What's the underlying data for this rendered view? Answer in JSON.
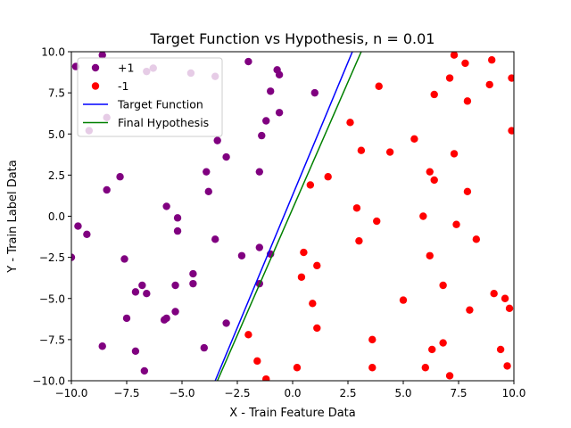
{
  "chart_data": {
    "type": "scatter",
    "title": "Target Function vs Hypothesis, n = 0.01",
    "xlabel": "X - Train Feature Data",
    "ylabel": "Y - Train Label Data",
    "xlim": [
      -10,
      10
    ],
    "ylim": [
      -10,
      10
    ],
    "xticks": [
      -10,
      -7.5,
      -5,
      -2.5,
      0,
      2.5,
      5,
      7.5,
      10
    ],
    "xtick_labels": [
      "−10.0",
      "−7.5",
      "−5.0",
      "−2.5",
      "0.0",
      "2.5",
      "5.0",
      "7.5",
      "10.0"
    ],
    "yticks": [
      -10,
      -7.5,
      -5,
      -2.5,
      0,
      2.5,
      5,
      7.5,
      10
    ],
    "ytick_labels": [
      "−10.0",
      "−7.5",
      "−5.0",
      "−2.5",
      "0.0",
      "2.5",
      "5.0",
      "7.5",
      "10.0"
    ],
    "grid": false,
    "legend_position": "upper-left",
    "series": [
      {
        "name": "+1",
        "kind": "scatter",
        "color": "#800080",
        "points": [
          [
            -9.8,
            9.1
          ],
          [
            -8.6,
            9.8
          ],
          [
            -6.3,
            9.0
          ],
          [
            -6.6,
            8.8
          ],
          [
            -4.6,
            8.7
          ],
          [
            -3.5,
            8.5
          ],
          [
            -9.2,
            5.2
          ],
          [
            -8.4,
            6.0
          ],
          [
            -2.0,
            9.4
          ],
          [
            -0.7,
            8.9
          ],
          [
            -0.6,
            8.6
          ],
          [
            -1.0,
            7.6
          ],
          [
            1.0,
            7.5
          ],
          [
            -0.6,
            6.3
          ],
          [
            -1.2,
            5.8
          ],
          [
            -1.4,
            4.9
          ],
          [
            -3.4,
            4.6
          ],
          [
            -3.0,
            3.6
          ],
          [
            -3.9,
            2.7
          ],
          [
            -1.5,
            2.7
          ],
          [
            -7.8,
            2.4
          ],
          [
            -8.4,
            1.6
          ],
          [
            -3.8,
            1.5
          ],
          [
            -5.7,
            0.6
          ],
          [
            -5.2,
            -0.1
          ],
          [
            -9.7,
            -0.6
          ],
          [
            -9.3,
            -1.1
          ],
          [
            -5.2,
            -0.9
          ],
          [
            -3.5,
            -1.4
          ],
          [
            -1.5,
            -1.9
          ],
          [
            -10.0,
            -2.5
          ],
          [
            -7.6,
            -2.6
          ],
          [
            -2.3,
            -2.4
          ],
          [
            -1.0,
            -2.3
          ],
          [
            -4.5,
            -3.5
          ],
          [
            -4.5,
            -4.1
          ],
          [
            -1.5,
            -4.1
          ],
          [
            -6.8,
            -4.2
          ],
          [
            -5.3,
            -4.2
          ],
          [
            -7.1,
            -4.6
          ],
          [
            -6.6,
            -4.7
          ],
          [
            -5.3,
            -5.8
          ],
          [
            -7.5,
            -6.2
          ],
          [
            -5.7,
            -6.2
          ],
          [
            -5.8,
            -6.3
          ],
          [
            -3.0,
            -6.5
          ],
          [
            -8.6,
            -7.9
          ],
          [
            -4.0,
            -8.0
          ],
          [
            -7.1,
            -8.2
          ],
          [
            -6.7,
            -9.4
          ]
        ]
      },
      {
        "name": "-1",
        "kind": "scatter",
        "color": "#ff0000",
        "points": [
          [
            7.3,
            9.8
          ],
          [
            9.0,
            9.5
          ],
          [
            7.8,
            9.3
          ],
          [
            9.9,
            8.4
          ],
          [
            7.1,
            8.4
          ],
          [
            8.9,
            8.0
          ],
          [
            3.9,
            7.9
          ],
          [
            6.4,
            7.4
          ],
          [
            7.9,
            7.0
          ],
          [
            2.6,
            5.7
          ],
          [
            9.9,
            5.2
          ],
          [
            5.5,
            4.7
          ],
          [
            3.1,
            4.0
          ],
          [
            4.4,
            3.9
          ],
          [
            7.3,
            3.8
          ],
          [
            6.2,
            2.7
          ],
          [
            1.6,
            2.4
          ],
          [
            6.4,
            2.2
          ],
          [
            0.8,
            1.9
          ],
          [
            7.9,
            1.5
          ],
          [
            2.9,
            0.5
          ],
          [
            5.9,
            0.0
          ],
          [
            3.8,
            -0.3
          ],
          [
            7.4,
            -0.5
          ],
          [
            3.0,
            -1.5
          ],
          [
            8.3,
            -1.4
          ],
          [
            0.5,
            -2.2
          ],
          [
            6.2,
            -2.4
          ],
          [
            1.1,
            -3.0
          ],
          [
            0.4,
            -3.7
          ],
          [
            6.8,
            -4.2
          ],
          [
            9.1,
            -4.7
          ],
          [
            9.6,
            -5.0
          ],
          [
            5.0,
            -5.1
          ],
          [
            0.9,
            -5.3
          ],
          [
            8.0,
            -5.7
          ],
          [
            9.8,
            -5.6
          ],
          [
            1.1,
            -6.8
          ],
          [
            -2.0,
            -7.2
          ],
          [
            3.6,
            -7.5
          ],
          [
            6.8,
            -7.7
          ],
          [
            6.3,
            -8.1
          ],
          [
            9.4,
            -8.1
          ],
          [
            -1.6,
            -8.8
          ],
          [
            0.2,
            -9.2
          ],
          [
            3.6,
            -9.2
          ],
          [
            6.0,
            -9.2
          ],
          [
            9.7,
            -9.1
          ],
          [
            -1.2,
            -9.9
          ],
          [
            7.1,
            -9.7
          ]
        ]
      },
      {
        "name": "Target Function",
        "kind": "line",
        "color": "#0000ff",
        "points": [
          [
            -3.5,
            -10.0
          ],
          [
            2.7,
            10.0
          ]
        ]
      },
      {
        "name": "Final Hypothesis",
        "kind": "line",
        "color": "#008000",
        "points": [
          [
            -3.4,
            -10.0
          ],
          [
            3.1,
            10.0
          ]
        ]
      }
    ]
  }
}
